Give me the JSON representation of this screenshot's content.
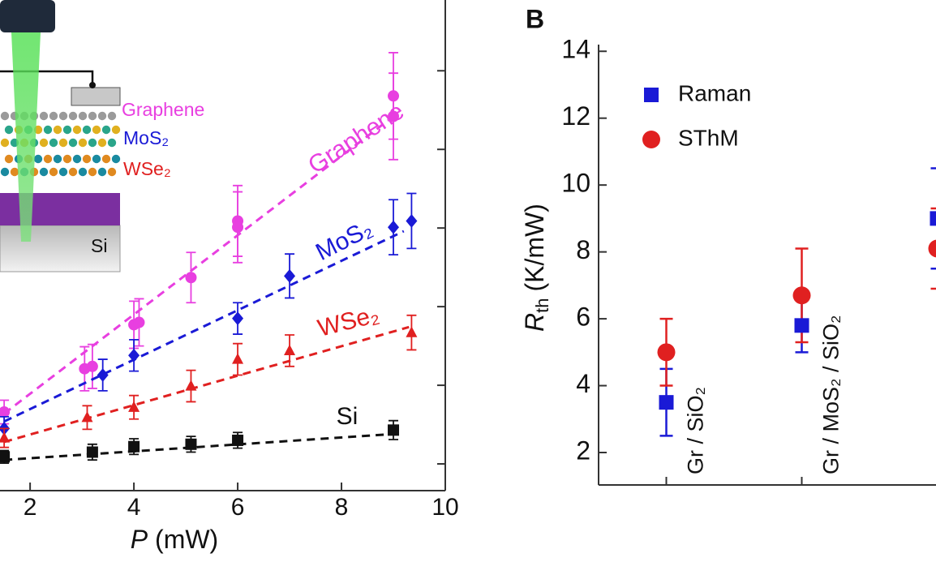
{
  "chart_data": [
    {
      "type": "scatter",
      "x_label": {
        "symbol": "P",
        "unit": "(mW)"
      },
      "xlim": [
        1.42,
        10
      ],
      "xticks": [
        2,
        4,
        6,
        8,
        10
      ],
      "ylim": [
        0.66,
        6.9
      ],
      "yticks": [
        1,
        2,
        3,
        4,
        5,
        6
      ],
      "series": [
        {
          "name": "Graphene",
          "color": "#e83fe0",
          "marker": "circle",
          "x": [
            1.5,
            3.05,
            3.2,
            4.0,
            4.1,
            5.1,
            6.0,
            6.0,
            9.0,
            9.0
          ],
          "values": [
            1.66,
            2.21,
            2.24,
            2.77,
            2.8,
            3.37,
            4.09,
            4.01,
            5.68,
            5.42
          ],
          "errors": [
            0.15,
            0.28,
            0.28,
            0.3,
            0.3,
            0.32,
            0.45,
            0.45,
            0.55,
            0.55
          ],
          "fit_x": [
            1.5,
            8.9
          ],
          "fit_values": [
            1.64,
            5.37
          ]
        },
        {
          "name": "MoS₂",
          "color": "#1a1ad6",
          "marker": "diamond",
          "x": [
            1.5,
            3.4,
            4.0,
            6.0,
            7.0,
            9.0,
            9.35
          ],
          "values": [
            1.45,
            2.13,
            2.38,
            2.85,
            3.39,
            4.01,
            4.09
          ],
          "errors": [
            0.15,
            0.2,
            0.2,
            0.2,
            0.28,
            0.35,
            0.35
          ],
          "fit_x": [
            1.5,
            9.2
          ],
          "fit_values": [
            1.54,
            3.96
          ]
        },
        {
          "name": "WSe₂",
          "color": "#e02020",
          "marker": "triangle",
          "x": [
            1.5,
            3.1,
            4.0,
            5.1,
            6.0,
            7.0,
            9.35
          ],
          "values": [
            1.33,
            1.59,
            1.72,
            1.99,
            2.33,
            2.44,
            2.67
          ],
          "errors": [
            0.12,
            0.15,
            0.15,
            0.2,
            0.2,
            0.2,
            0.22
          ],
          "fit_x": [
            1.5,
            9.3
          ],
          "fit_values": [
            1.28,
            2.74
          ]
        },
        {
          "name": "Si",
          "color": "#111111",
          "marker": "square",
          "x": [
            1.5,
            3.2,
            4.0,
            5.1,
            6.0,
            9.0
          ],
          "values": [
            1.09,
            1.15,
            1.22,
            1.25,
            1.3,
            1.43
          ],
          "errors": [
            0.08,
            0.1,
            0.1,
            0.1,
            0.1,
            0.12
          ],
          "fit_x": [
            1.5,
            9.0
          ],
          "fit_values": [
            1.05,
            1.38
          ]
        }
      ],
      "annotations": [
        "Graphene",
        "MoS₂",
        "WSe₂",
        "Si"
      ],
      "inset_labels": [
        "Graphene",
        "MoS₂",
        "WSe₂",
        "Si"
      ]
    },
    {
      "type": "dot",
      "panel_label": "B",
      "y_label": {
        "symbol": "R",
        "subscript": "th",
        "unit": "(K/mW)"
      },
      "categories": [
        "Gr / SiO₂",
        "Gr / MoS₂ / SiO₂",
        null
      ],
      "ylim": [
        1.03,
        14.2
      ],
      "yticks": [
        2,
        4,
        6,
        8,
        10,
        12,
        14
      ],
      "legend": "upper left",
      "series": [
        {
          "name": "Raman",
          "color": "#1a1ad6",
          "marker": "square",
          "values": [
            3.5,
            5.8,
            9.0
          ],
          "errors": [
            1.0,
            0.8,
            1.5
          ]
        },
        {
          "name": "SThM",
          "color": "#e02020",
          "marker": "circle",
          "values": [
            5.0,
            6.7,
            8.1
          ],
          "errors": [
            1.0,
            1.4,
            1.2
          ]
        }
      ]
    }
  ]
}
